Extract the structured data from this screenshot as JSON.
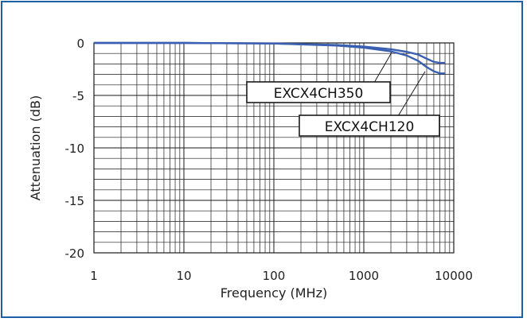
{
  "chart_data": {
    "type": "line",
    "xlabel": "Frequency (MHz)",
    "ylabel": "Attenuation (dB)",
    "x_scale": "log",
    "xlim": [
      1,
      10000
    ],
    "ylim": [
      -20,
      0
    ],
    "x_ticks": [
      "1",
      "10",
      "100",
      "1000",
      "10000"
    ],
    "y_ticks": [
      "0",
      "-5",
      "-10",
      "-15",
      "-20"
    ],
    "grid": true,
    "series": [
      {
        "name": "EXCX4CH350",
        "x": [
          1,
          10,
          100,
          500,
          1000,
          2000,
          3000,
          4000,
          5000,
          6000,
          7000,
          8000
        ],
        "y": [
          0,
          0,
          -0.05,
          -0.2,
          -0.35,
          -0.6,
          -0.85,
          -1.1,
          -1.5,
          -1.8,
          -1.9,
          -1.9
        ]
      },
      {
        "name": "EXCX4CH120",
        "x": [
          1,
          10,
          100,
          500,
          1000,
          2000,
          3000,
          4000,
          5000,
          6000,
          7000,
          8000
        ],
        "y": [
          0,
          0,
          -0.05,
          -0.25,
          -0.45,
          -0.8,
          -1.2,
          -1.7,
          -2.3,
          -2.7,
          -2.9,
          -2.9
        ]
      }
    ],
    "colors": {
      "line": "#3a5fb0",
      "grid": "#1a1a1a",
      "frame": "#1f5fa8"
    }
  }
}
